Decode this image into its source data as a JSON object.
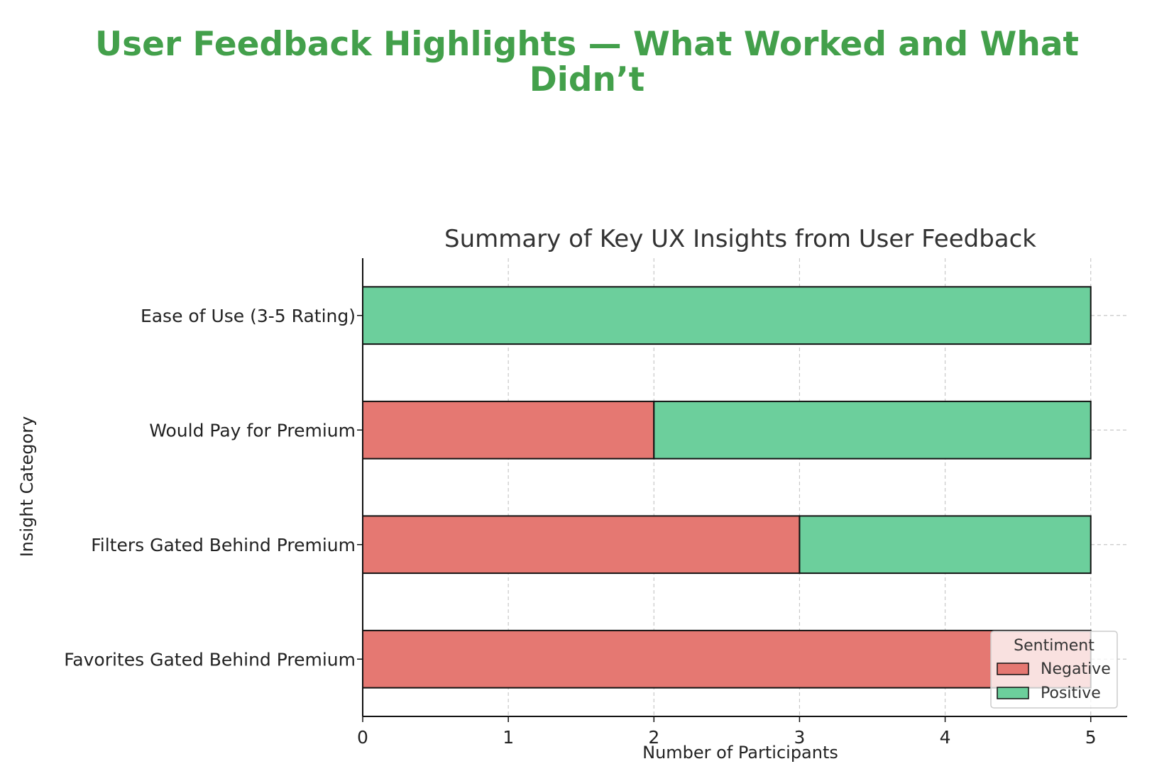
{
  "headline": {
    "line1": "User Feedback Highlights — What Worked and What",
    "line2": "Didn’t"
  },
  "colors": {
    "headline": "#43a04b",
    "negative": "#e57872",
    "positive": "#6ccf9c",
    "edge": "#111111",
    "grid": "#c8c8c8",
    "text": "#222222"
  },
  "chart_data": {
    "type": "bar",
    "orientation": "horizontal",
    "stacked": true,
    "title": "Summary of Key UX Insights from User Feedback",
    "xlabel": "Number of Participants",
    "ylabel": "Insight Category",
    "categories": [
      "Ease of Use (3-5 Rating)",
      "Would Pay for Premium",
      "Filters Gated Behind Premium",
      "Favorites Gated Behind Premium"
    ],
    "series": [
      {
        "name": "Negative",
        "values": [
          0,
          2,
          3,
          5
        ]
      },
      {
        "name": "Positive",
        "values": [
          5,
          3,
          2,
          0
        ]
      }
    ],
    "xlim": [
      0,
      5.25
    ],
    "xticks": [
      "0",
      "1",
      "2",
      "3",
      "4",
      "5"
    ],
    "grid": true,
    "legend": {
      "title": "Sentiment",
      "position": "lower-right",
      "entries": [
        "Negative",
        "Positive"
      ]
    }
  }
}
